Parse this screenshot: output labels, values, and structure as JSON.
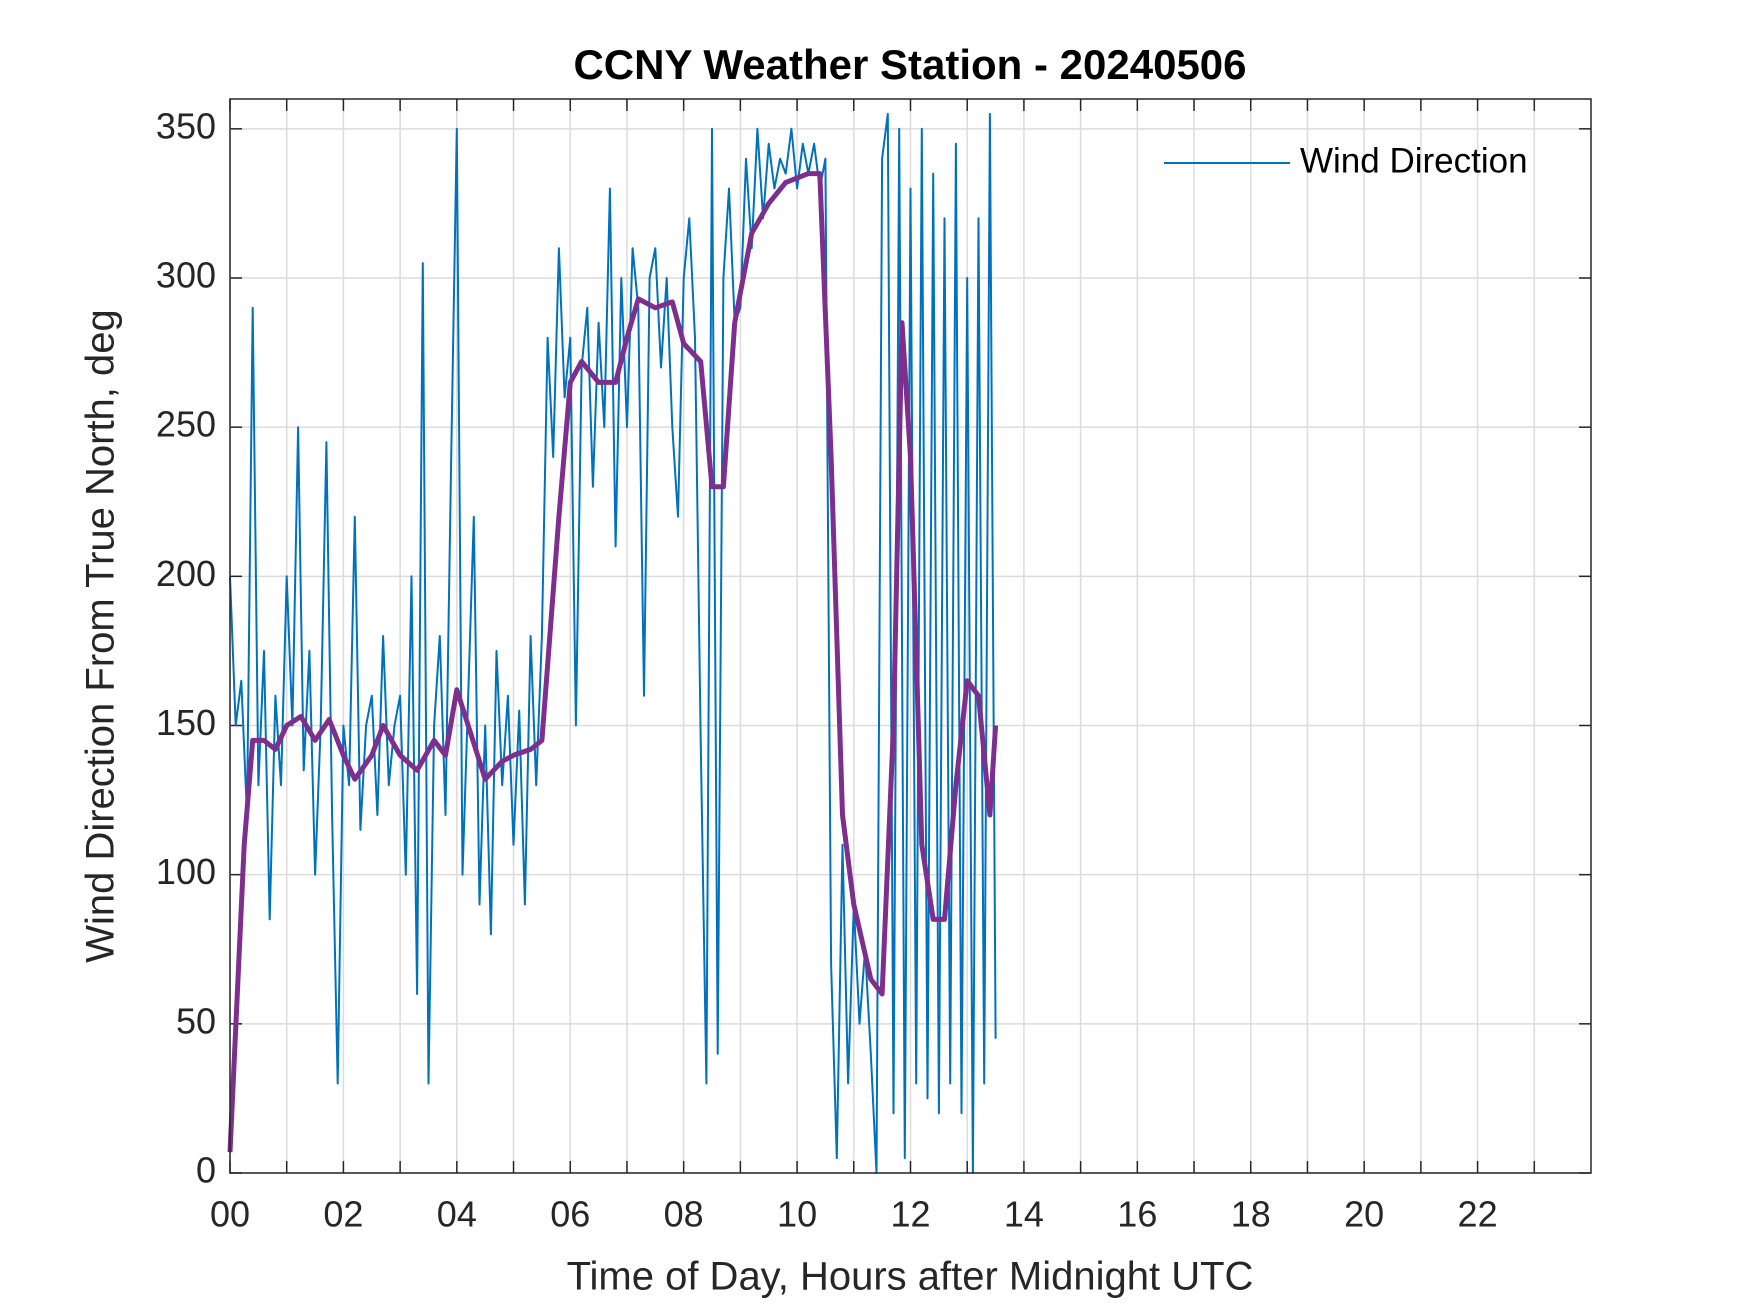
{
  "chart_data": {
    "type": "line",
    "title": "CCNY Weather Station - 20240506",
    "xlabel": "Time of Day, Hours after Midnight UTC",
    "ylabel": "Wind Direction From True North, deg",
    "xlim": [
      0,
      24
    ],
    "ylim": [
      0,
      360
    ],
    "xticks": [
      {
        "value": 0,
        "label": "00"
      },
      {
        "value": 2,
        "label": "02"
      },
      {
        "value": 4,
        "label": "04"
      },
      {
        "value": 6,
        "label": "06"
      },
      {
        "value": 8,
        "label": "08"
      },
      10,
      12,
      14,
      16,
      18,
      20,
      22
    ],
    "xminor_ticks": [
      1,
      3,
      5,
      7,
      9,
      11,
      13,
      15,
      17,
      19,
      21,
      23
    ],
    "yticks": [
      0,
      50,
      100,
      150,
      200,
      250,
      300,
      350
    ],
    "grid": true,
    "legend": "upper right",
    "series": [
      {
        "name": "Wind Direction",
        "color": "#0072bd",
        "x": [
          0.0,
          0.1,
          0.2,
          0.3,
          0.4,
          0.5,
          0.6,
          0.7,
          0.8,
          0.9,
          1.0,
          1.1,
          1.2,
          1.3,
          1.4,
          1.5,
          1.6,
          1.7,
          1.8,
          1.9,
          2.0,
          2.1,
          2.2,
          2.3,
          2.4,
          2.5,
          2.6,
          2.7,
          2.8,
          2.9,
          3.0,
          3.1,
          3.2,
          3.3,
          3.4,
          3.5,
          3.6,
          3.7,
          3.8,
          3.9,
          4.0,
          4.1,
          4.2,
          4.3,
          4.4,
          4.5,
          4.6,
          4.7,
          4.8,
          4.9,
          5.0,
          5.1,
          5.2,
          5.3,
          5.4,
          5.5,
          5.6,
          5.7,
          5.8,
          5.9,
          6.0,
          6.1,
          6.2,
          6.3,
          6.4,
          6.5,
          6.6,
          6.7,
          6.8,
          6.9,
          7.0,
          7.1,
          7.2,
          7.3,
          7.4,
          7.5,
          7.6,
          7.7,
          7.8,
          7.9,
          8.0,
          8.1,
          8.2,
          8.3,
          8.4,
          8.5,
          8.6,
          8.7,
          8.8,
          8.9,
          9.0,
          9.1,
          9.2,
          9.3,
          9.4,
          9.5,
          9.6,
          9.7,
          9.8,
          9.9,
          10.0,
          10.1,
          10.2,
          10.3,
          10.4,
          10.5,
          10.6,
          10.7,
          10.8,
          10.9,
          11.0,
          11.1,
          11.2,
          11.3,
          11.4,
          11.5,
          11.6,
          11.7,
          11.8,
          11.9,
          12.0,
          12.1,
          12.2,
          12.3,
          12.4,
          12.5,
          12.6,
          12.7,
          12.8,
          12.9,
          13.0,
          13.1,
          13.2,
          13.3,
          13.4,
          13.5
        ],
        "values": [
          200,
          150,
          165,
          120,
          290,
          130,
          175,
          85,
          160,
          130,
          200,
          150,
          250,
          135,
          175,
          100,
          150,
          245,
          120,
          30,
          150,
          130,
          220,
          115,
          150,
          160,
          120,
          180,
          130,
          150,
          160,
          100,
          200,
          60,
          305,
          30,
          150,
          180,
          120,
          240,
          350,
          100,
          160,
          220,
          90,
          150,
          80,
          175,
          130,
          160,
          110,
          155,
          90,
          180,
          130,
          180,
          280,
          240,
          310,
          260,
          280,
          150,
          270,
          290,
          230,
          285,
          250,
          330,
          210,
          300,
          250,
          310,
          290,
          160,
          300,
          310,
          270,
          300,
          250,
          220,
          300,
          320,
          280,
          145,
          30,
          350,
          40,
          300,
          330,
          285,
          290,
          340,
          310,
          350,
          320,
          345,
          330,
          340,
          335,
          350,
          330,
          345,
          335,
          345,
          330,
          340,
          70,
          5,
          110,
          30,
          90,
          50,
          75,
          40,
          0,
          340,
          355,
          20,
          350,
          5,
          330,
          30,
          350,
          25,
          335,
          20,
          320,
          30,
          345,
          20,
          300,
          0,
          320,
          30,
          355,
          45
        ]
      },
      {
        "color": "#7e2f8e",
        "x": [
          0,
          0.25,
          0.4,
          0.6,
          0.8,
          1.0,
          1.25,
          1.5,
          1.75,
          2.0,
          2.2,
          2.5,
          2.7,
          3.0,
          3.3,
          3.6,
          3.8,
          4.0,
          4.2,
          4.5,
          4.8,
          5.0,
          5.3,
          5.5,
          5.8,
          6.0,
          6.2,
          6.5,
          6.8,
          7.0,
          7.2,
          7.5,
          7.8,
          8.0,
          8.3,
          8.5,
          8.7,
          8.9,
          9.2,
          9.5,
          9.8,
          10.2,
          10.4,
          10.6,
          10.8,
          11.0,
          11.3,
          11.5,
          11.7,
          11.85,
          12.0,
          12.2,
          12.4,
          12.6,
          12.8,
          13.0,
          13.2,
          13.4,
          13.5
        ],
        "values": [
          7,
          110,
          145,
          145,
          142,
          150,
          153,
          145,
          152,
          140,
          132,
          140,
          150,
          140,
          135,
          145,
          140,
          162,
          150,
          132,
          138,
          140,
          142,
          145,
          220,
          265,
          272,
          265,
          265,
          280,
          293,
          290,
          292,
          278,
          272,
          230,
          230,
          285,
          315,
          325,
          332,
          335,
          335,
          240,
          120,
          90,
          65,
          60,
          150,
          285,
          240,
          110,
          85,
          85,
          130,
          165,
          160,
          120,
          150
        ]
      }
    ]
  }
}
